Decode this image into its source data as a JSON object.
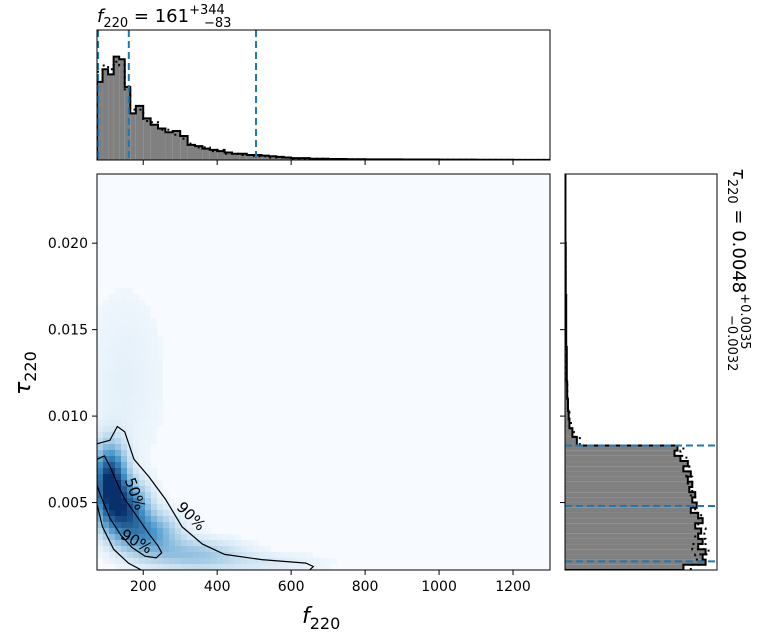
{
  "chart_data": {
    "type": "corner",
    "top_title": {
      "base": "f",
      "sub": "220",
      "mid": " = 161",
      "sup": "+344",
      "lower": "−83"
    },
    "right_title": {
      "base": "τ",
      "sub": "220",
      "mid": " = 0.0048",
      "sup": "+0.0035",
      "lower": "−0.0032"
    },
    "joint": {
      "type": "heatmap",
      "x_axis": {
        "label_base": "f",
        "label_sub": "220",
        "range": [
          75,
          1300
        ],
        "ticks": [
          "200",
          "400",
          "600",
          "800",
          "1000",
          "1200"
        ],
        "tick_values": [
          200,
          400,
          600,
          800,
          1000,
          1200
        ]
      },
      "y_axis": {
        "label_base": "τ",
        "label_sub": "220",
        "range": [
          0.0011,
          0.024
        ],
        "ticks": [
          "0.005",
          "0.010",
          "0.015",
          "0.020"
        ],
        "tick_values": [
          0.005,
          0.01,
          0.015,
          0.02
        ]
      },
      "contours": [
        {
          "label": "50%",
          "points": [
            [
              75,
              0.0075
            ],
            [
              95,
              0.0077
            ],
            [
              112,
              0.007
            ],
            [
              130,
              0.0061
            ],
            [
              150,
              0.0052
            ],
            [
              180,
              0.0043
            ],
            [
              215,
              0.0032
            ],
            [
              240,
              0.0025
            ],
            [
              250,
              0.0021
            ],
            [
              235,
              0.0018
            ],
            [
              205,
              0.0019
            ],
            [
              170,
              0.0024
            ],
            [
              140,
              0.0031
            ],
            [
              110,
              0.0041
            ],
            [
              85,
              0.0054
            ],
            [
              75,
              0.006
            ],
            [
              75,
              0.0075
            ]
          ]
        },
        {
          "label": "90%",
          "points": [
            [
              75,
              0.0084
            ],
            [
              110,
              0.0086
            ],
            [
              130,
              0.0094
            ],
            [
              150,
              0.0091
            ],
            [
              175,
              0.0075
            ],
            [
              215,
              0.0065
            ],
            [
              260,
              0.0052
            ],
            [
              305,
              0.0036
            ],
            [
              360,
              0.0026
            ],
            [
              420,
              0.002
            ],
            [
              520,
              0.0017
            ],
            [
              640,
              0.0015
            ],
            [
              660,
              0.0013
            ],
            [
              650,
              0.0011
            ]
          ]
        },
        {
          "label": "90%",
          "points": [
            [
              75,
              0.0049
            ],
            [
              90,
              0.0036
            ],
            [
              120,
              0.0023
            ],
            [
              160,
              0.0015
            ],
            [
              195,
              0.0011
            ]
          ]
        }
      ],
      "contour_labels": [
        {
          "text": "50%",
          "x": 165,
          "y": 0.0054
        },
        {
          "text": "90%",
          "x": 320,
          "y": 0.004
        },
        {
          "text": "90%",
          "x": 175,
          "y": 0.0025
        }
      ],
      "density_blobs": [
        {
          "x": 110,
          "y": 0.0062,
          "sx": 28,
          "sy": 0.0013,
          "w": 1.0
        },
        {
          "x": 150,
          "y": 0.0046,
          "sx": 40,
          "sy": 0.001,
          "w": 0.75
        },
        {
          "x": 210,
          "y": 0.0032,
          "sx": 55,
          "sy": 0.0008,
          "w": 0.45
        },
        {
          "x": 330,
          "y": 0.002,
          "sx": 90,
          "sy": 0.0006,
          "w": 0.25
        },
        {
          "x": 520,
          "y": 0.0015,
          "sx": 120,
          "sy": 0.0004,
          "w": 0.08
        },
        {
          "x": 150,
          "y": 0.012,
          "sx": 80,
          "sy": 0.004,
          "w": 0.05
        }
      ],
      "colors": {
        "low": "#f7fbff",
        "high": "#08306b"
      }
    },
    "top_hist": {
      "type": "histogram",
      "x_range": [
        75,
        1300
      ],
      "y_range": [
        0,
        1.0
      ],
      "quantile_lines": [
        78,
        161,
        505
      ],
      "bin_edges": [
        75,
        90,
        105,
        120,
        135,
        150,
        165,
        180,
        200,
        220,
        240,
        260,
        280,
        300,
        320,
        340,
        360,
        380,
        400,
        420,
        440,
        460,
        480,
        500,
        520,
        540,
        560,
        580,
        600,
        650,
        700,
        750,
        800,
        900,
        1000,
        1100,
        1200,
        1300
      ],
      "values": [
        0.62,
        0.72,
        0.68,
        0.82,
        0.8,
        0.58,
        0.37,
        0.43,
        0.33,
        0.28,
        0.25,
        0.22,
        0.23,
        0.19,
        0.12,
        0.11,
        0.09,
        0.08,
        0.07,
        0.06,
        0.05,
        0.05,
        0.04,
        0.04,
        0.035,
        0.03,
        0.025,
        0.02,
        0.015,
        0.01,
        0.008,
        0.006,
        0.005,
        0.004,
        0.003,
        0.002,
        0.001
      ],
      "alt_values": [
        0.7,
        0.75,
        0.72,
        0.78,
        0.75,
        0.55,
        0.4,
        0.4,
        0.31,
        0.3,
        0.24,
        0.24,
        0.2,
        0.17,
        0.13,
        0.1,
        0.1,
        0.07,
        0.08,
        0.05,
        0.05,
        0.04,
        0.04,
        0.03,
        0.03,
        0.02,
        0.02,
        0.02,
        0.012,
        0.01,
        0.007,
        0.005,
        0.004,
        0.003,
        0.002,
        0.001,
        0.001
      ],
      "fill": "#808080"
    },
    "right_hist": {
      "type": "histogram",
      "orientation": "horizontal",
      "y_range": [
        0.0011,
        0.024
      ],
      "x_range": [
        0,
        1.0
      ],
      "quantile_lines": [
        0.0016,
        0.0048,
        0.0083
      ],
      "bin_edges": [
        0.0011,
        0.0014,
        0.0017,
        0.002,
        0.0023,
        0.0026,
        0.0029,
        0.0032,
        0.0035,
        0.0038,
        0.0041,
        0.0044,
        0.0047,
        0.005,
        0.0053,
        0.0056,
        0.0059,
        0.0062,
        0.0065,
        0.0068,
        0.0071,
        0.0074,
        0.0077,
        0.008,
        0.0083,
        0.0088,
        0.0093,
        0.0098,
        0.0103,
        0.011,
        0.012,
        0.014,
        0.017,
        0.02,
        0.024
      ],
      "values": [
        0.8,
        0.95,
        0.93,
        0.95,
        0.9,
        0.93,
        0.9,
        0.92,
        0.88,
        0.93,
        0.9,
        0.85,
        0.89,
        0.86,
        0.88,
        0.84,
        0.86,
        0.83,
        0.85,
        0.8,
        0.83,
        0.78,
        0.74,
        0.76,
        0.08,
        0.05,
        0.03,
        0.025,
        0.02,
        0.015,
        0.012,
        0.008,
        0.005,
        0.003
      ],
      "alt_values": [
        0.85,
        0.92,
        0.88,
        0.97,
        0.86,
        0.95,
        0.88,
        0.95,
        0.9,
        0.9,
        0.92,
        0.88,
        0.86,
        0.88,
        0.85,
        0.86,
        0.83,
        0.86,
        0.82,
        0.84,
        0.8,
        0.82,
        0.78,
        0.8,
        0.1,
        0.06,
        0.04,
        0.03,
        0.02,
        0.015,
        0.01,
        0.007,
        0.004,
        0.002
      ],
      "fill": "#808080"
    }
  }
}
